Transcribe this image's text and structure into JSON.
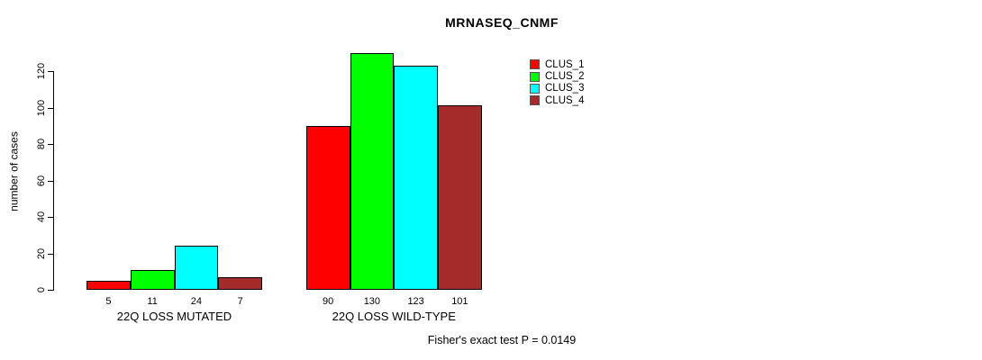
{
  "title": "MRNASEQ_CNMF",
  "ylabel": "number of cases",
  "footer": "Fisher's exact test P = 0.0149",
  "colors": {
    "clus_1": "#ff0000",
    "clus_2": "#00ff00",
    "clus_3": "#00ffff",
    "clus_4": "#a52a2a",
    "axis": "#000000",
    "background": "#ffffff"
  },
  "legend": {
    "position": "top-right",
    "items": [
      {
        "label": "CLUS_1",
        "color": "#ff0000"
      },
      {
        "label": "CLUS_2",
        "color": "#00ff00"
      },
      {
        "label": "CLUS_3",
        "color": "#00ffff"
      },
      {
        "label": "CLUS_4",
        "color": "#a52a2a"
      }
    ]
  },
  "chart_data": {
    "type": "bar",
    "title": "MRNASEQ_CNMF",
    "xlabel": "",
    "ylabel": "number of cases",
    "categories": [
      "22Q LOSS MUTATED",
      "22Q LOSS WILD-TYPE"
    ],
    "series": [
      {
        "name": "CLUS_1",
        "color": "#ff0000",
        "values": [
          5,
          90
        ]
      },
      {
        "name": "CLUS_2",
        "color": "#00ff00",
        "values": [
          11,
          130
        ]
      },
      {
        "name": "CLUS_3",
        "color": "#00ffff",
        "values": [
          24,
          123
        ]
      },
      {
        "name": "CLUS_4",
        "color": "#a52a2a",
        "values": [
          7,
          101
        ]
      }
    ],
    "bar_value_labels": [
      [
        5,
        11,
        24,
        7
      ],
      [
        90,
        130,
        123,
        101
      ]
    ],
    "yticks": [
      0,
      20,
      40,
      60,
      80,
      100,
      120
    ],
    "ylim": [
      0,
      130
    ],
    "grid": false,
    "legend_position": "top-right",
    "annotation": "Fisher's exact test P = 0.0149"
  }
}
